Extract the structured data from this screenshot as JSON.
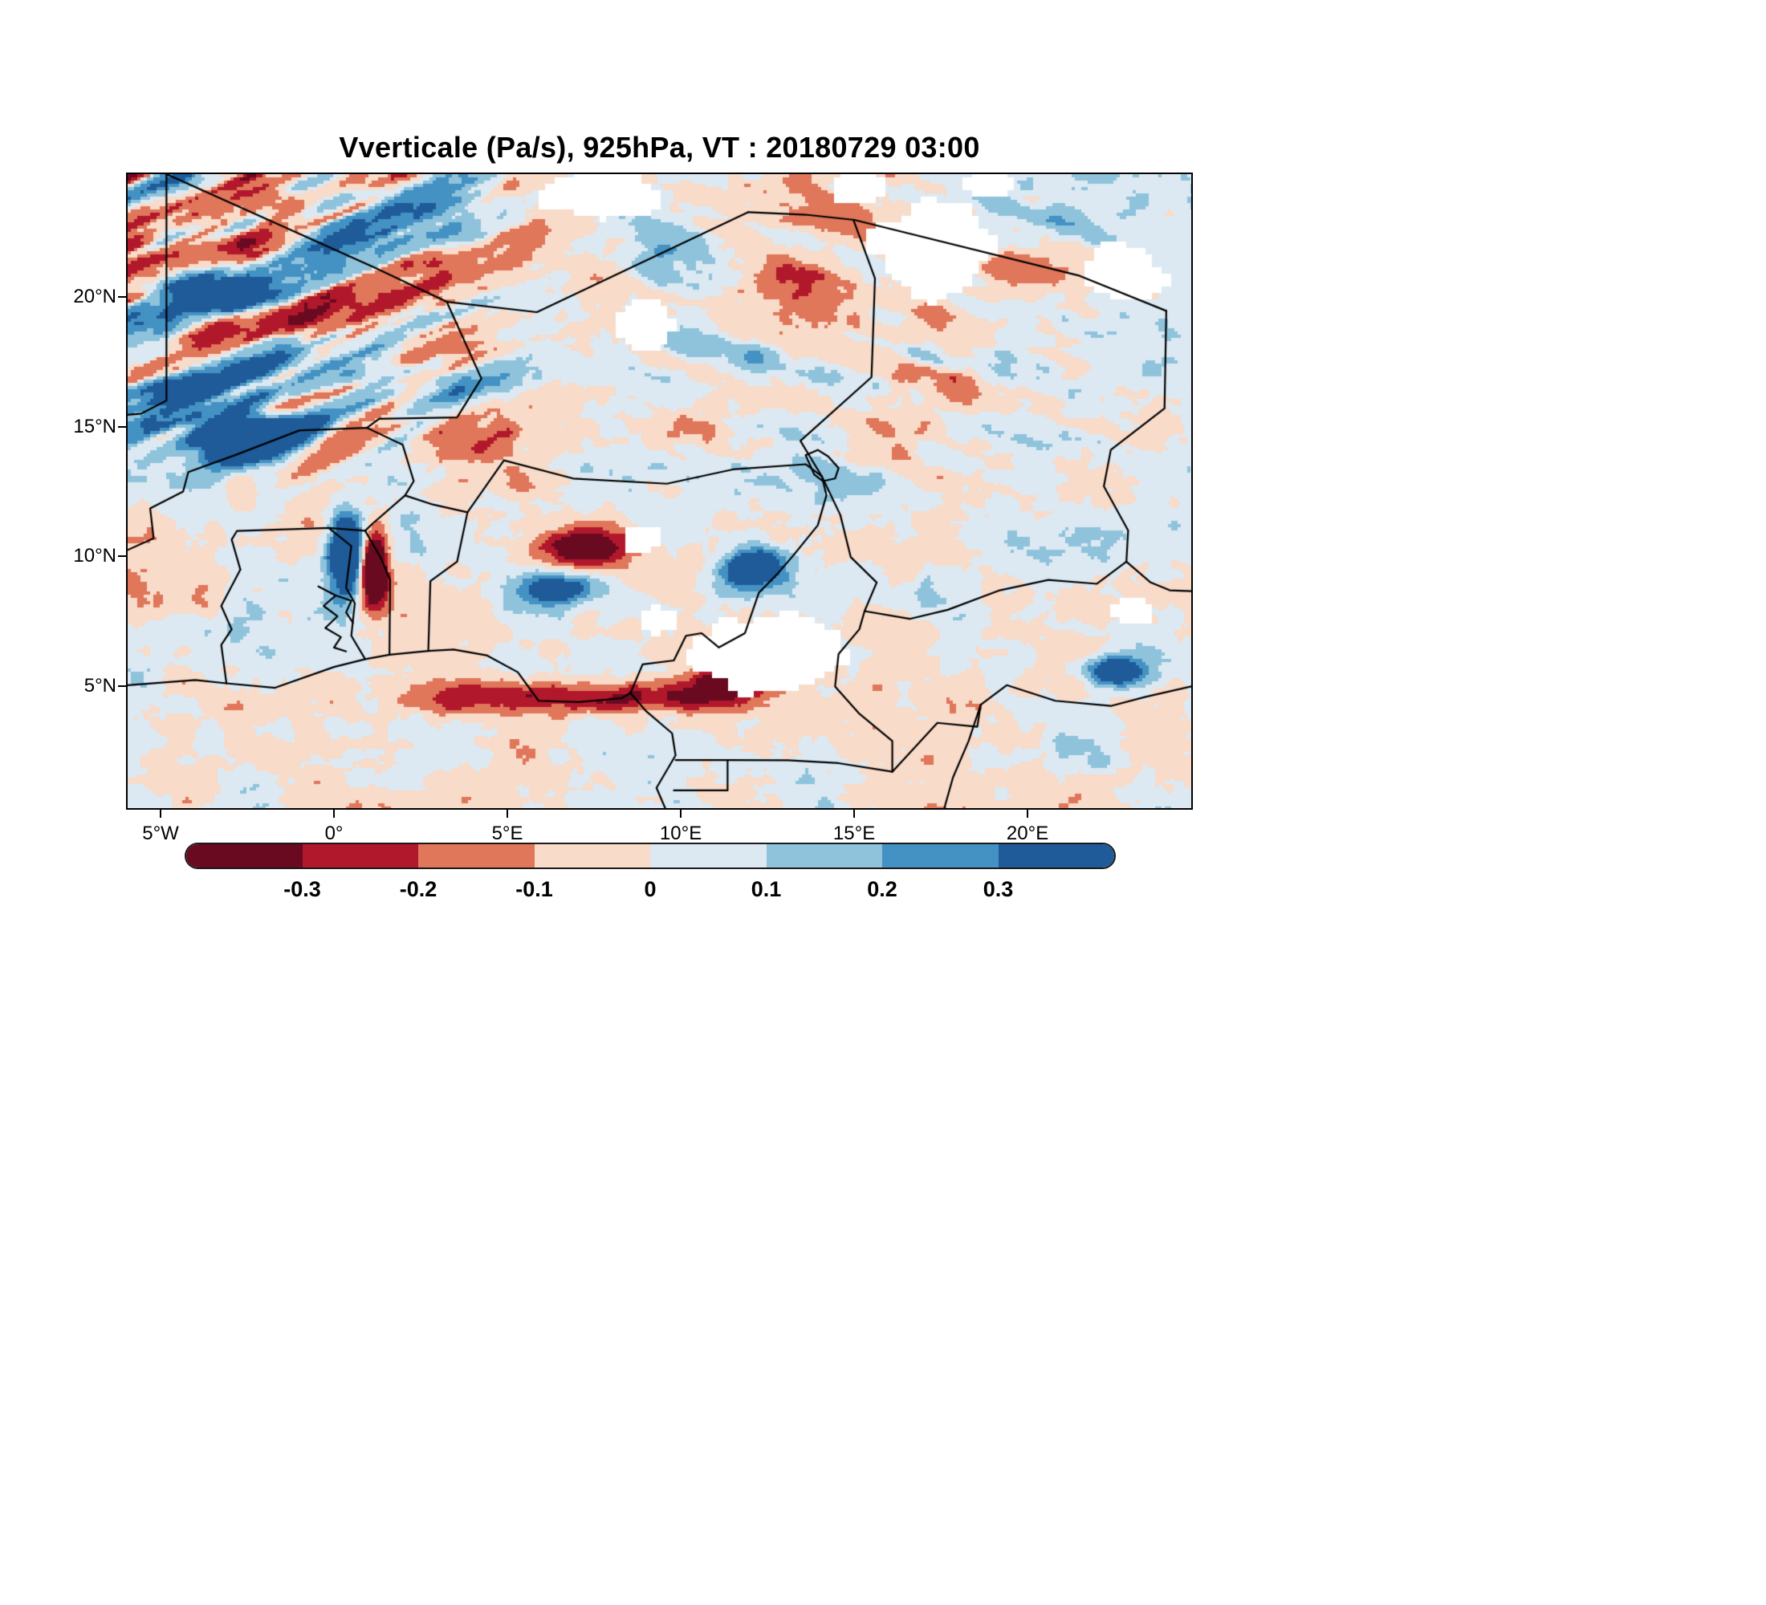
{
  "title": "Vverticale (Pa/s), 925hPa, VT : 20180729  03:00",
  "axes": {
    "lat_ticks": [
      {
        "label": "20°N",
        "value": 20
      },
      {
        "label": "15°N",
        "value": 15
      },
      {
        "label": "10°N",
        "value": 10
      },
      {
        "label": "5°N",
        "value": 5
      }
    ],
    "lon_ticks": [
      {
        "label": "5°W",
        "value": -5
      },
      {
        "label": "0°",
        "value": 0
      },
      {
        "label": "5°E",
        "value": 5
      },
      {
        "label": "10°E",
        "value": 10
      },
      {
        "label": "15°E",
        "value": 15
      },
      {
        "label": "20°E",
        "value": 20
      }
    ]
  },
  "chart_data": {
    "type": "heatmap",
    "title": "Vverticale (Pa/s), 925hPa, VT : 20180729  03:00",
    "variable": "Vverticale",
    "units": "Pa/s",
    "pressure_level": "925hPa",
    "valid_time": "20180729 03:00",
    "xlabel": "",
    "ylabel": "",
    "x_tick_labels": [
      "5°W",
      "0°",
      "5°E",
      "10°E",
      "15°E",
      "20°E"
    ],
    "y_tick_labels": [
      "5°N",
      "10°N",
      "15°N",
      "20°N"
    ],
    "lon_range": [
      -5.95,
      24.72
    ],
    "lat_range": [
      0.32,
      24.71
    ],
    "grid": false,
    "legend_position": "bottom",
    "colorbar": {
      "orientation": "horizontal",
      "tick_labels": [
        "-0.3",
        "-0.2",
        "-0.1",
        "0",
        "0.1",
        "0.2",
        "0.3"
      ],
      "thresholds": [
        -0.3,
        -0.2,
        -0.1,
        0,
        0.1,
        0.2,
        0.3
      ],
      "colors": [
        "#6a0a20",
        "#b2182b",
        "#e0765a",
        "#f8dbc9",
        "#dce9f2",
        "#8fc3dc",
        "#4392c3",
        "#1f5b99"
      ],
      "missing_data_color": "#ffffff"
    },
    "overlay": "country borders (black lines)"
  },
  "colors": {
    "background": "#ffffff",
    "frame": "#000000",
    "border_lines": "#000000"
  }
}
